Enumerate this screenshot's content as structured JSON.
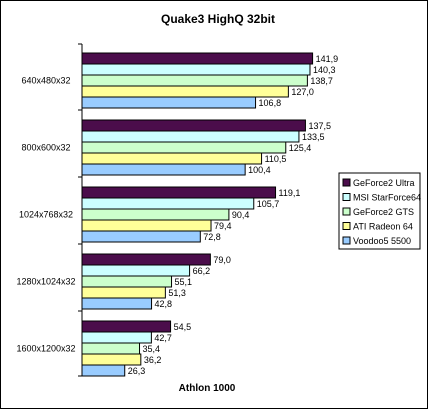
{
  "chart_data": {
    "type": "bar",
    "orientation": "horizontal",
    "title": "Quake3 HighQ 32bit",
    "xlabel": "Athlon 1000",
    "ylabel": "",
    "xlim": [
      0,
      150
    ],
    "grid": false,
    "legend_position": "right",
    "categories": [
      "640x480x32",
      "800x600x32",
      "1024x768x32",
      "1280x1024x32",
      "1600x1200x32"
    ],
    "series": [
      {
        "name": "GeForce2 Ultra",
        "color": "#4b0d4b",
        "values": [
          141.9,
          137.5,
          119.1,
          79.0,
          54.5
        ],
        "labels": [
          "141,9",
          "137,5",
          "119,1",
          "79,0",
          "54,5"
        ]
      },
      {
        "name": "MSI StarForce64",
        "color": "#ccffff",
        "values": [
          140.3,
          133.5,
          105.7,
          66.2,
          42.7
        ],
        "labels": [
          "140,3",
          "133,5",
          "105,7",
          "66,2",
          "42,7"
        ]
      },
      {
        "name": "GeForce2 GTS",
        "color": "#ccffcc",
        "values": [
          138.7,
          125.4,
          90.4,
          55.1,
          35.4
        ],
        "labels": [
          "138,7",
          "125,4",
          "90,4",
          "55,1",
          "35,4"
        ]
      },
      {
        "name": "ATI Radeon 64",
        "color": "#ffff99",
        "values": [
          127.0,
          110.5,
          79.4,
          51.3,
          36.2
        ],
        "labels": [
          "127,0",
          "110,5",
          "79,4",
          "51,3",
          "36,2"
        ]
      },
      {
        "name": "Voodoo5 5500",
        "color": "#99ccff",
        "values": [
          106.8,
          100.4,
          72.8,
          42.8,
          26.3
        ],
        "labels": [
          "106,8",
          "100,4",
          "72,8",
          "42,8",
          "26,3"
        ]
      }
    ]
  }
}
